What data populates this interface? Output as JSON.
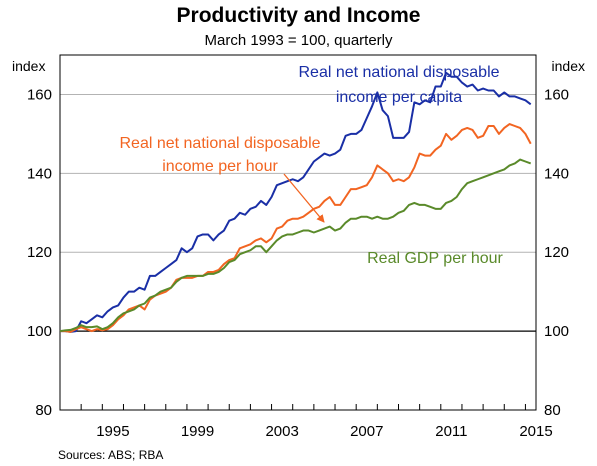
{
  "title": "Productivity and Income",
  "subtitle": "March 1993 = 100, quarterly",
  "unit_left": "index",
  "unit_right": "index",
  "source": "Sources:   ABS; RBA",
  "colors": {
    "income_per_capita": "#1a2fa6",
    "income_per_hour": "#f26522",
    "gdp_per_hour": "#5a8a2a",
    "grid": "#b3b3b3",
    "axis": "#000000"
  },
  "chart_data": {
    "type": "line",
    "title": "Productivity and Income",
    "subtitle": "March 1993 = 100, quarterly",
    "ylabel": "index",
    "ylim": [
      80,
      170
    ],
    "yticks": [
      80,
      100,
      120,
      140,
      160
    ],
    "xlim": [
      1993.0,
      2015.5
    ],
    "xticks": [
      1995,
      1999,
      2003,
      2007,
      2011,
      2015
    ],
    "grid": true,
    "reference_line": 100,
    "series": [
      {
        "name": "Real net national disposable income per capita",
        "label_lines": [
          "Real net national disposable",
          "income per capita"
        ],
        "color": "#1a2fa6",
        "points": [
          [
            1993.0,
            100
          ],
          [
            1993.25,
            100
          ],
          [
            1993.5,
            99.8
          ],
          [
            1993.75,
            100
          ],
          [
            1994.0,
            102.5
          ],
          [
            1994.25,
            102
          ],
          [
            1994.5,
            103
          ],
          [
            1994.75,
            104
          ],
          [
            1995.0,
            103.5
          ],
          [
            1995.25,
            105
          ],
          [
            1995.5,
            106
          ],
          [
            1995.75,
            106.5
          ],
          [
            1996.0,
            108.5
          ],
          [
            1996.25,
            110
          ],
          [
            1996.5,
            110
          ],
          [
            1996.75,
            111
          ],
          [
            1997.0,
            110.5
          ],
          [
            1997.25,
            114
          ],
          [
            1997.5,
            114
          ],
          [
            1997.75,
            115
          ],
          [
            1998.0,
            116
          ],
          [
            1998.25,
            117
          ],
          [
            1998.5,
            118
          ],
          [
            1998.75,
            121
          ],
          [
            1999.0,
            120
          ],
          [
            1999.25,
            121
          ],
          [
            1999.5,
            124
          ],
          [
            1999.75,
            124.5
          ],
          [
            2000.0,
            124.5
          ],
          [
            2000.25,
            123
          ],
          [
            2000.5,
            124.5
          ],
          [
            2000.75,
            125.5
          ],
          [
            2001.0,
            128
          ],
          [
            2001.25,
            128.5
          ],
          [
            2001.5,
            130
          ],
          [
            2001.75,
            129.5
          ],
          [
            2002.0,
            131
          ],
          [
            2002.25,
            131.5
          ],
          [
            2002.5,
            133
          ],
          [
            2002.75,
            132
          ],
          [
            2003.0,
            134
          ],
          [
            2003.25,
            137
          ],
          [
            2003.5,
            137.5
          ],
          [
            2003.75,
            138
          ],
          [
            2004.0,
            138.5
          ],
          [
            2004.25,
            138
          ],
          [
            2004.5,
            139
          ],
          [
            2004.75,
            141
          ],
          [
            2005.0,
            143
          ],
          [
            2005.25,
            144
          ],
          [
            2005.5,
            145
          ],
          [
            2005.75,
            144.5
          ],
          [
            2006.0,
            145
          ],
          [
            2006.25,
            146
          ],
          [
            2006.5,
            149.5
          ],
          [
            2006.75,
            150
          ],
          [
            2007.0,
            150
          ],
          [
            2007.25,
            151
          ],
          [
            2007.5,
            154
          ],
          [
            2007.75,
            157
          ],
          [
            2008.0,
            160.5
          ],
          [
            2008.25,
            156
          ],
          [
            2008.5,
            154.5
          ],
          [
            2008.75,
            149
          ],
          [
            2009.0,
            149
          ],
          [
            2009.25,
            149
          ],
          [
            2009.5,
            150.5
          ],
          [
            2009.75,
            158
          ],
          [
            2010.0,
            157.5
          ],
          [
            2010.25,
            158.5
          ],
          [
            2010.5,
            158
          ],
          [
            2010.75,
            162
          ],
          [
            2011.0,
            162
          ],
          [
            2011.25,
            165.5
          ],
          [
            2011.5,
            164.5
          ],
          [
            2011.75,
            164.5
          ],
          [
            2012.0,
            163
          ],
          [
            2012.25,
            162
          ],
          [
            2012.5,
            162.5
          ],
          [
            2012.75,
            161
          ],
          [
            2013.0,
            161.5
          ],
          [
            2013.25,
            161
          ],
          [
            2013.5,
            161
          ],
          [
            2013.75,
            159.5
          ],
          [
            2014.0,
            160.5
          ],
          [
            2014.25,
            159.5
          ],
          [
            2014.5,
            159.5
          ],
          [
            2014.75,
            159
          ],
          [
            2015.0,
            158.5
          ],
          [
            2015.25,
            157.5
          ]
        ]
      },
      {
        "name": "Real net national disposable income per hour",
        "label_lines": [
          "Real net national disposable",
          "income per hour"
        ],
        "color": "#f26522",
        "points": [
          [
            1993.0,
            100
          ],
          [
            1993.25,
            100
          ],
          [
            1993.5,
            99.8
          ],
          [
            1993.75,
            100.5
          ],
          [
            1994.0,
            101
          ],
          [
            1994.25,
            100.5
          ],
          [
            1994.5,
            100
          ],
          [
            1994.75,
            100.5
          ],
          [
            1995.0,
            100.2
          ],
          [
            1995.25,
            100.5
          ],
          [
            1995.5,
            101.5
          ],
          [
            1995.75,
            103
          ],
          [
            1996.0,
            104
          ],
          [
            1996.25,
            105.5
          ],
          [
            1996.5,
            106
          ],
          [
            1996.75,
            106.5
          ],
          [
            1997.0,
            105.5
          ],
          [
            1997.25,
            108
          ],
          [
            1997.5,
            109
          ],
          [
            1997.75,
            109.5
          ],
          [
            1998.0,
            110
          ],
          [
            1998.25,
            111
          ],
          [
            1998.5,
            113
          ],
          [
            1998.75,
            113.5
          ],
          [
            1999.0,
            113.5
          ],
          [
            1999.25,
            113.5
          ],
          [
            1999.5,
            114
          ],
          [
            1999.75,
            114
          ],
          [
            2000.0,
            115
          ],
          [
            2000.25,
            115
          ],
          [
            2000.5,
            115.5
          ],
          [
            2000.75,
            117
          ],
          [
            2001.0,
            118
          ],
          [
            2001.25,
            118.5
          ],
          [
            2001.5,
            121
          ],
          [
            2001.75,
            121.5
          ],
          [
            2002.0,
            122
          ],
          [
            2002.25,
            123
          ],
          [
            2002.5,
            123.5
          ],
          [
            2002.75,
            122.5
          ],
          [
            2003.0,
            123.5
          ],
          [
            2003.25,
            126
          ],
          [
            2003.5,
            126.5
          ],
          [
            2003.75,
            128
          ],
          [
            2004.0,
            128.5
          ],
          [
            2004.25,
            128.5
          ],
          [
            2004.5,
            129
          ],
          [
            2004.75,
            130
          ],
          [
            2005.0,
            131
          ],
          [
            2005.25,
            131.5
          ],
          [
            2005.5,
            133
          ],
          [
            2005.75,
            134
          ],
          [
            2006.0,
            132
          ],
          [
            2006.25,
            132
          ],
          [
            2006.5,
            134
          ],
          [
            2006.75,
            136
          ],
          [
            2007.0,
            136
          ],
          [
            2007.25,
            136.5
          ],
          [
            2007.5,
            137
          ],
          [
            2007.75,
            139
          ],
          [
            2008.0,
            142
          ],
          [
            2008.25,
            141
          ],
          [
            2008.5,
            140
          ],
          [
            2008.75,
            138
          ],
          [
            2009.0,
            138.5
          ],
          [
            2009.25,
            138
          ],
          [
            2009.5,
            139
          ],
          [
            2009.75,
            141.5
          ],
          [
            2010.0,
            145
          ],
          [
            2010.25,
            144.5
          ],
          [
            2010.5,
            144.5
          ],
          [
            2010.75,
            146
          ],
          [
            2011.0,
            147
          ],
          [
            2011.25,
            150
          ],
          [
            2011.5,
            148.5
          ],
          [
            2011.75,
            149.5
          ],
          [
            2012.0,
            151
          ],
          [
            2012.25,
            151.5
          ],
          [
            2012.5,
            151
          ],
          [
            2012.75,
            149
          ],
          [
            2013.0,
            149.5
          ],
          [
            2013.25,
            152
          ],
          [
            2013.5,
            152
          ],
          [
            2013.75,
            150
          ],
          [
            2014.0,
            151.5
          ],
          [
            2014.25,
            152.5
          ],
          [
            2014.5,
            152
          ],
          [
            2014.75,
            151.5
          ],
          [
            2015.0,
            150
          ],
          [
            2015.25,
            147.5
          ]
        ]
      },
      {
        "name": "Real GDP per hour",
        "label_lines": [
          "Real GDP per hour"
        ],
        "color": "#5a8a2a",
        "points": [
          [
            1993.0,
            100
          ],
          [
            1993.25,
            100.2
          ],
          [
            1993.5,
            100.3
          ],
          [
            1993.75,
            100.8
          ],
          [
            1994.0,
            101.5
          ],
          [
            1994.25,
            101
          ],
          [
            1994.5,
            101
          ],
          [
            1994.75,
            101.2
          ],
          [
            1995.0,
            100.5
          ],
          [
            1995.25,
            101
          ],
          [
            1995.5,
            102
          ],
          [
            1995.75,
            103.5
          ],
          [
            1996.0,
            104.5
          ],
          [
            1996.25,
            105
          ],
          [
            1996.5,
            105.5
          ],
          [
            1996.75,
            106.5
          ],
          [
            1997.0,
            107
          ],
          [
            1997.25,
            108.5
          ],
          [
            1997.5,
            109
          ],
          [
            1997.75,
            110
          ],
          [
            1998.0,
            110.5
          ],
          [
            1998.25,
            111
          ],
          [
            1998.5,
            112.5
          ],
          [
            1998.75,
            113.5
          ],
          [
            1999.0,
            114
          ],
          [
            1999.25,
            114
          ],
          [
            1999.5,
            114
          ],
          [
            1999.75,
            114
          ],
          [
            2000.0,
            114.5
          ],
          [
            2000.25,
            114.5
          ],
          [
            2000.5,
            115
          ],
          [
            2000.75,
            116
          ],
          [
            2001.0,
            117.5
          ],
          [
            2001.25,
            118
          ],
          [
            2001.5,
            119.5
          ],
          [
            2001.75,
            120
          ],
          [
            2002.0,
            120.5
          ],
          [
            2002.25,
            121.5
          ],
          [
            2002.5,
            121.5
          ],
          [
            2002.75,
            120
          ],
          [
            2003.0,
            121.5
          ],
          [
            2003.25,
            123
          ],
          [
            2003.5,
            124
          ],
          [
            2003.75,
            124.5
          ],
          [
            2004.0,
            124.5
          ],
          [
            2004.25,
            125
          ],
          [
            2004.5,
            125.5
          ],
          [
            2004.75,
            125.5
          ],
          [
            2005.0,
            125
          ],
          [
            2005.25,
            125.5
          ],
          [
            2005.5,
            126
          ],
          [
            2005.75,
            126.5
          ],
          [
            2006.0,
            125.5
          ],
          [
            2006.25,
            126
          ],
          [
            2006.5,
            127.5
          ],
          [
            2006.75,
            128.5
          ],
          [
            2007.0,
            128.5
          ],
          [
            2007.25,
            129
          ],
          [
            2007.5,
            129
          ],
          [
            2007.75,
            128.5
          ],
          [
            2008.0,
            129
          ],
          [
            2008.25,
            128.5
          ],
          [
            2008.5,
            128.5
          ],
          [
            2008.75,
            129
          ],
          [
            2009.0,
            130
          ],
          [
            2009.25,
            130.5
          ],
          [
            2009.5,
            132
          ],
          [
            2009.75,
            132.5
          ],
          [
            2010.0,
            132
          ],
          [
            2010.25,
            132
          ],
          [
            2010.5,
            131.5
          ],
          [
            2010.75,
            131
          ],
          [
            2011.0,
            131
          ],
          [
            2011.25,
            132.5
          ],
          [
            2011.5,
            133
          ],
          [
            2011.75,
            134
          ],
          [
            2012.0,
            136
          ],
          [
            2012.25,
            137.5
          ],
          [
            2012.5,
            138
          ],
          [
            2012.75,
            138.5
          ],
          [
            2013.0,
            139
          ],
          [
            2013.25,
            139.5
          ],
          [
            2013.5,
            140
          ],
          [
            2013.75,
            140.5
          ],
          [
            2014.0,
            141
          ],
          [
            2014.25,
            142
          ],
          [
            2014.5,
            142.5
          ],
          [
            2014.75,
            143.5
          ],
          [
            2015.0,
            143
          ],
          [
            2015.25,
            142.5
          ]
        ]
      }
    ]
  }
}
